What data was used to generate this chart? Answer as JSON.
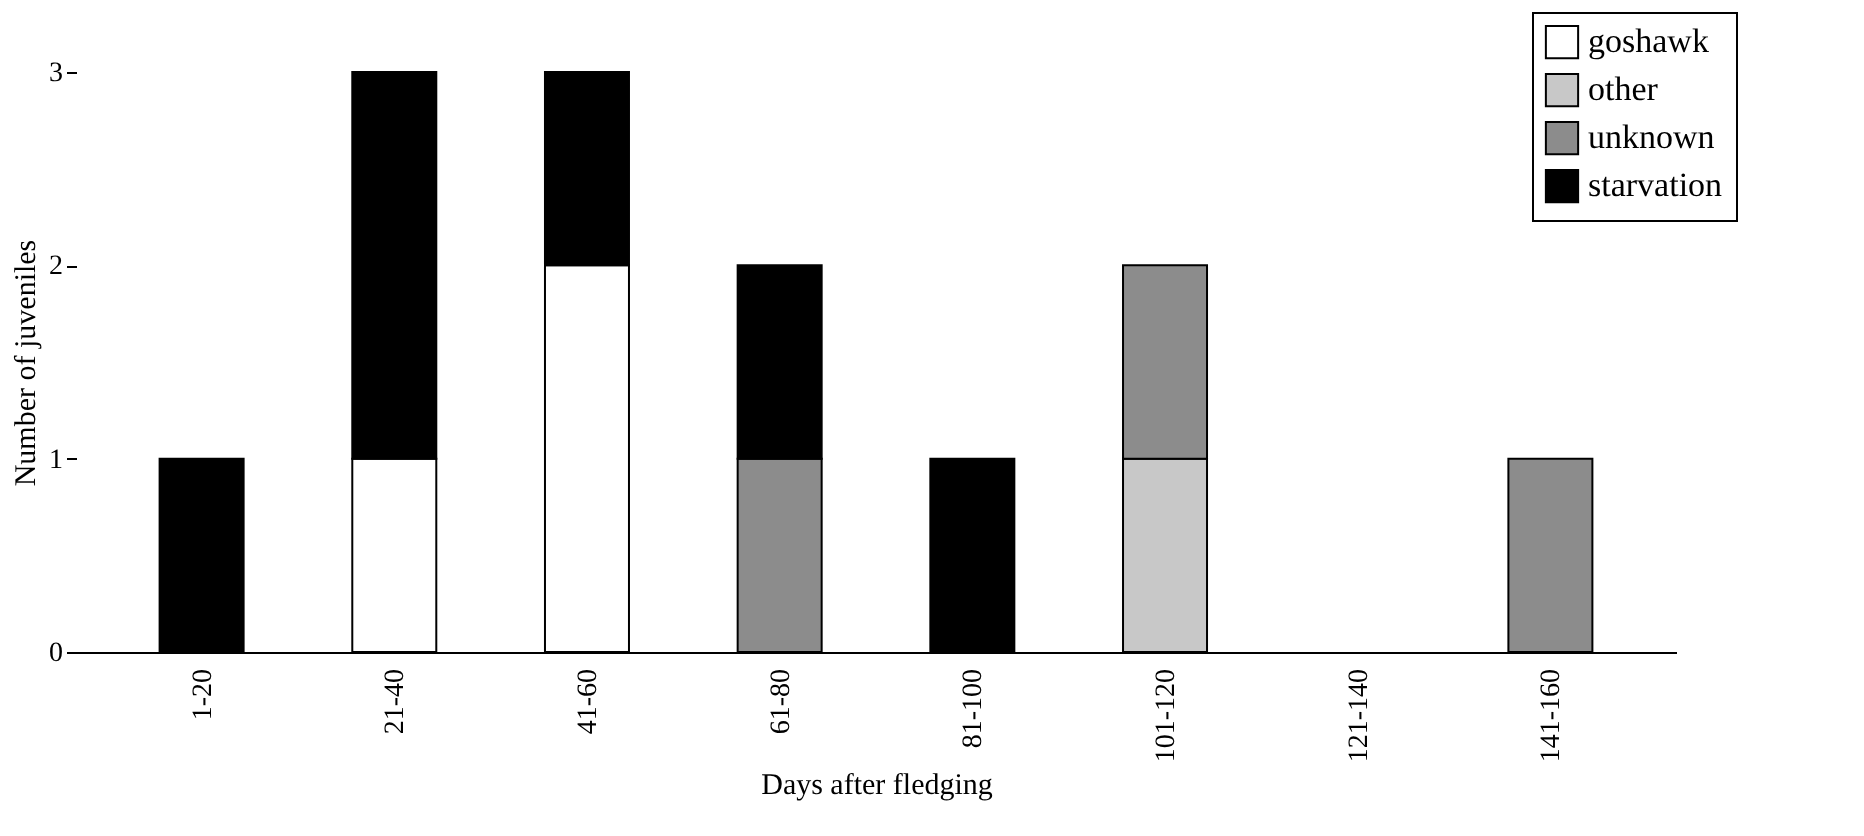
{
  "chart_data": {
    "type": "bar",
    "stacked": true,
    "xlabel": "Days after fledging",
    "ylabel": "Number of juveniles",
    "categories": [
      "1-20",
      "21-40",
      "41-60",
      "61-80",
      "81-100",
      "101-120",
      "121-140",
      "141-160"
    ],
    "series": [
      {
        "name": "goshawk",
        "color": "#ffffff",
        "values": [
          0,
          1,
          2,
          0,
          0,
          0,
          0,
          0
        ]
      },
      {
        "name": "other",
        "color": "#c8c8c8",
        "values": [
          0,
          0,
          0,
          0,
          0,
          1,
          0,
          0
        ]
      },
      {
        "name": "unknown",
        "color": "#8c8c8c",
        "values": [
          0,
          0,
          0,
          1,
          0,
          1,
          0,
          1
        ]
      },
      {
        "name": "starvation",
        "color": "#000000",
        "values": [
          1,
          2,
          1,
          1,
          1,
          0,
          0,
          0
        ]
      }
    ],
    "ylim": [
      0,
      3
    ],
    "yticks": [
      0,
      1,
      2,
      3
    ],
    "grid": false,
    "legend": "top right"
  }
}
